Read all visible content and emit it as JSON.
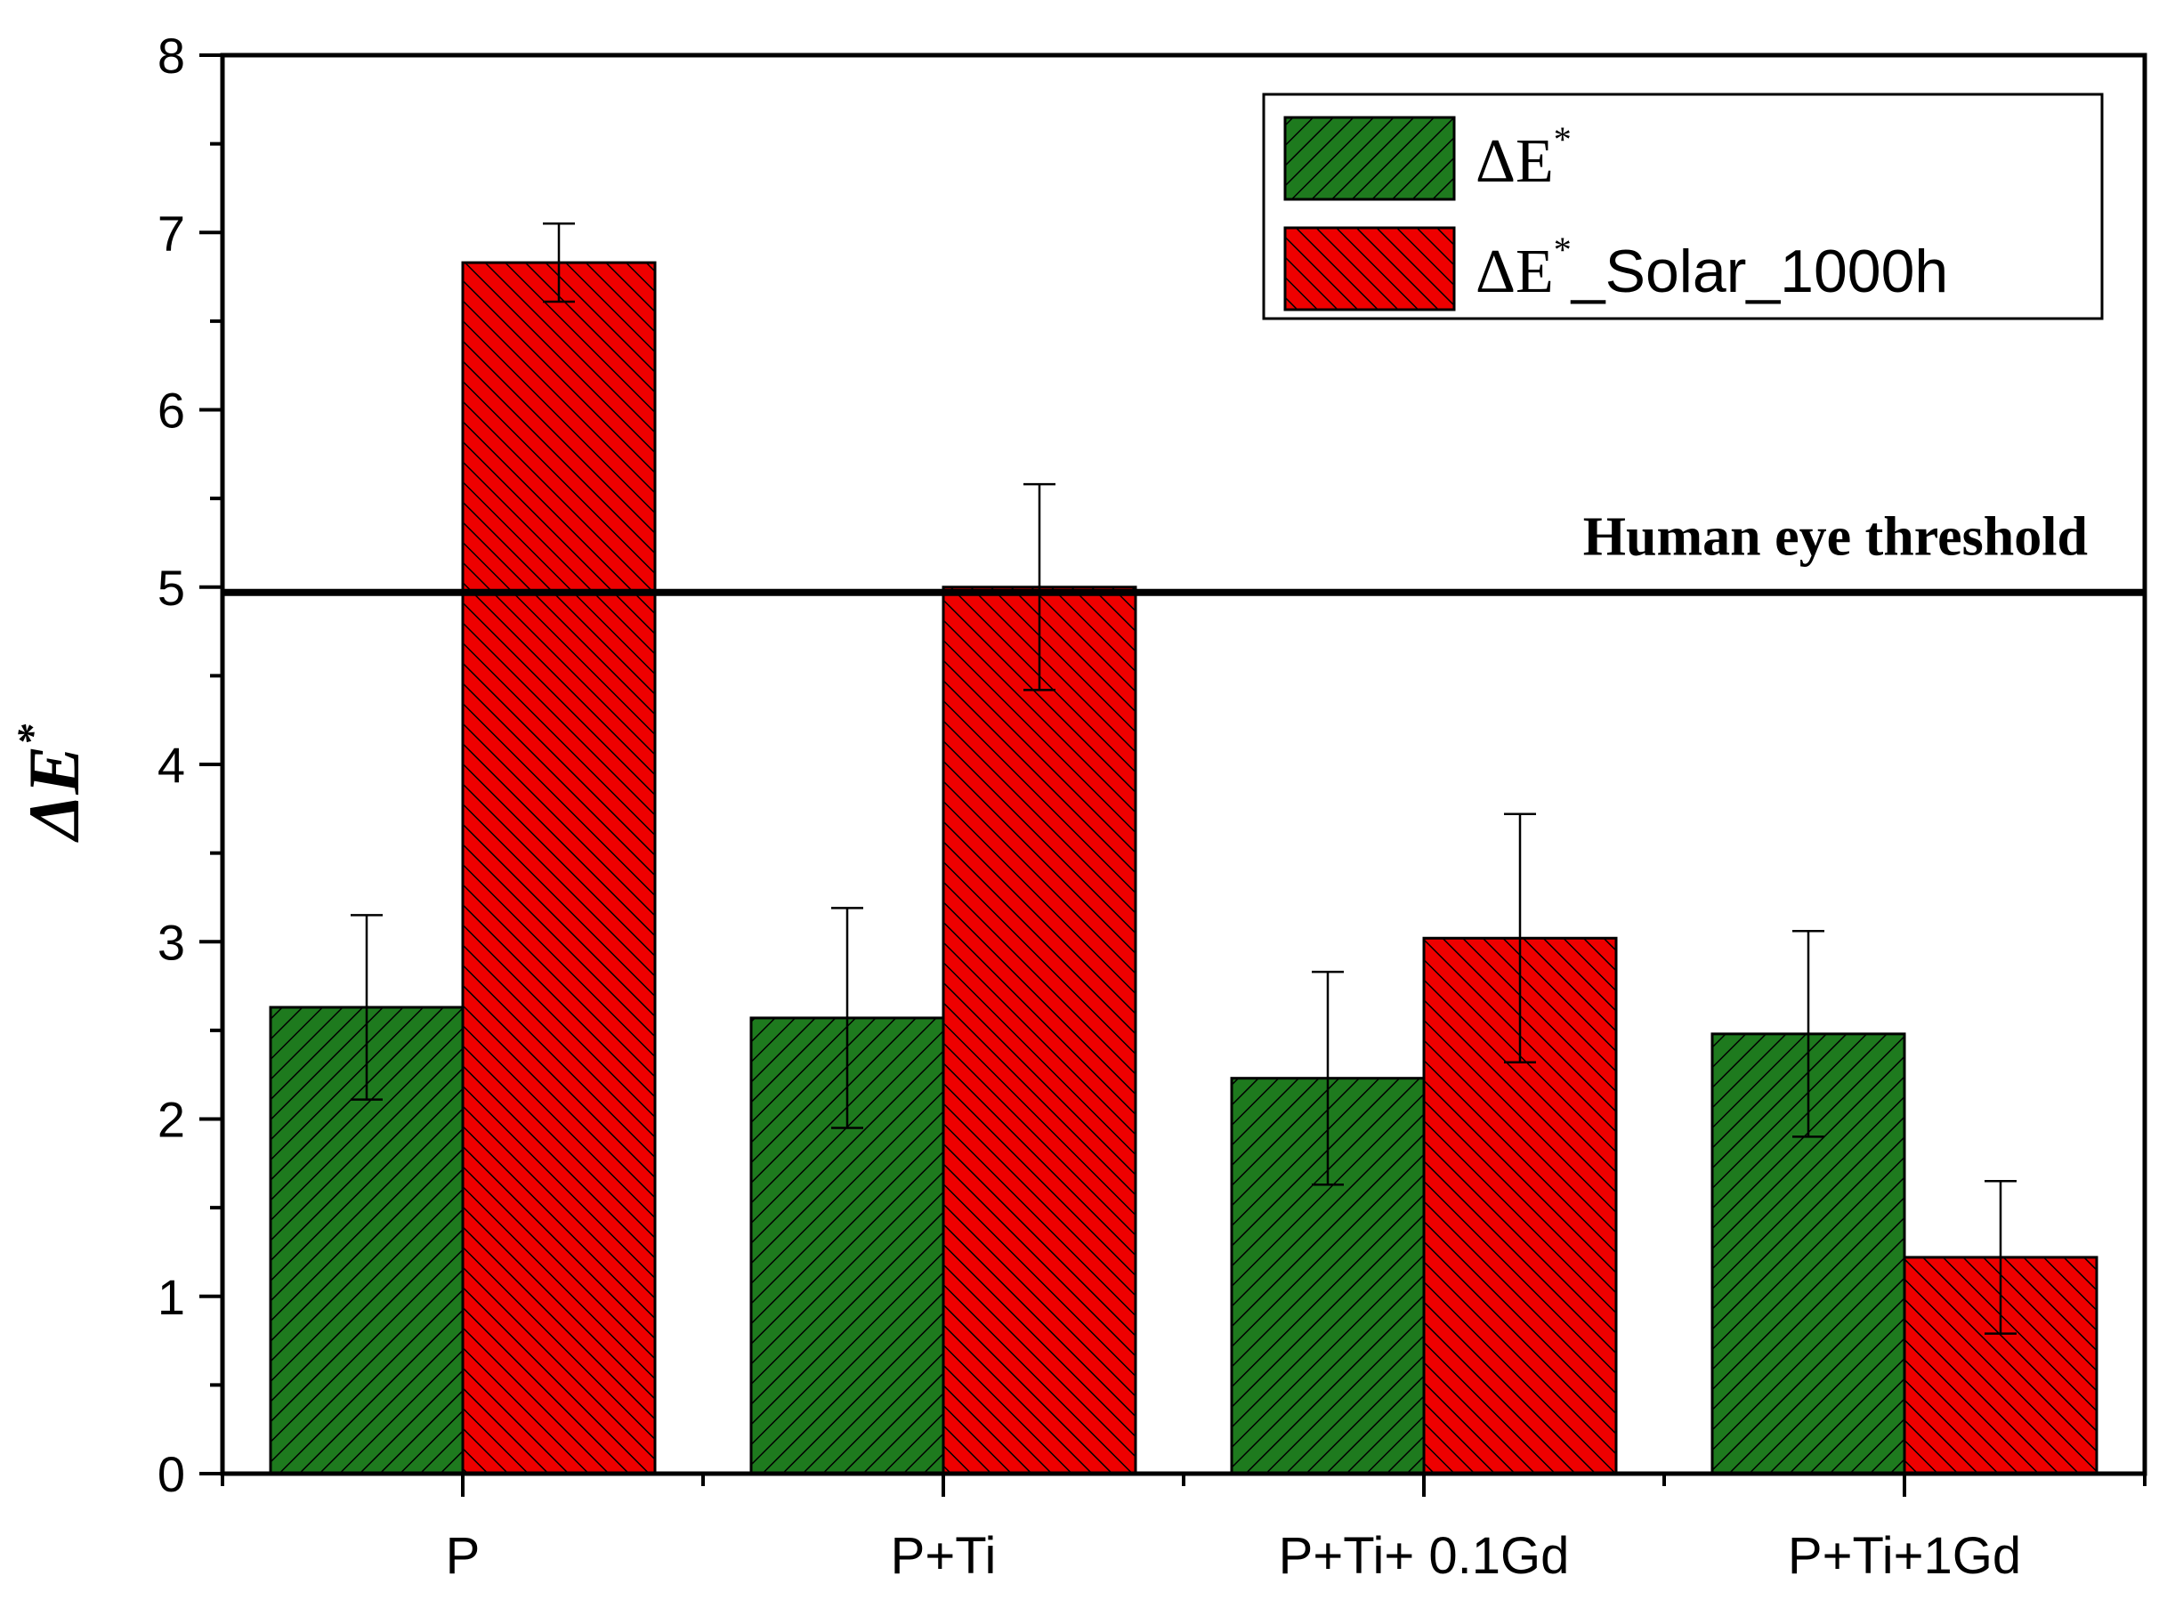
{
  "chart_data": {
    "type": "bar",
    "title": "",
    "xlabel": "",
    "ylabel": "ΔE",
    "ylabel_superscript": "*",
    "ylim": [
      0,
      8
    ],
    "yticks": [
      0,
      1,
      2,
      3,
      4,
      5,
      6,
      7,
      8
    ],
    "categories": [
      "P",
      "P+Ti",
      "P+Ti+ 0.1Gd",
      "P+Ti+1Gd"
    ],
    "series": [
      {
        "name": "ΔE*",
        "legend_main": "ΔE",
        "legend_sup": "*",
        "legend_suffix": "",
        "color": "#1e7a1e",
        "values": [
          2.63,
          2.57,
          2.23,
          2.48
        ],
        "errors": [
          0.52,
          0.62,
          0.6,
          0.58
        ]
      },
      {
        "name": "ΔE*_Solar_1000h",
        "legend_main": "ΔE",
        "legend_sup": "*",
        "legend_suffix": "_Solar_1000h",
        "color": "#ee0000",
        "values": [
          6.83,
          5.0,
          3.02,
          1.22
        ],
        "errors": [
          0.22,
          0.58,
          0.7,
          0.43
        ]
      }
    ],
    "threshold": {
      "value": 4.97,
      "label": "Human eye threshold"
    },
    "legend_position": "top-right",
    "grid": false
  }
}
